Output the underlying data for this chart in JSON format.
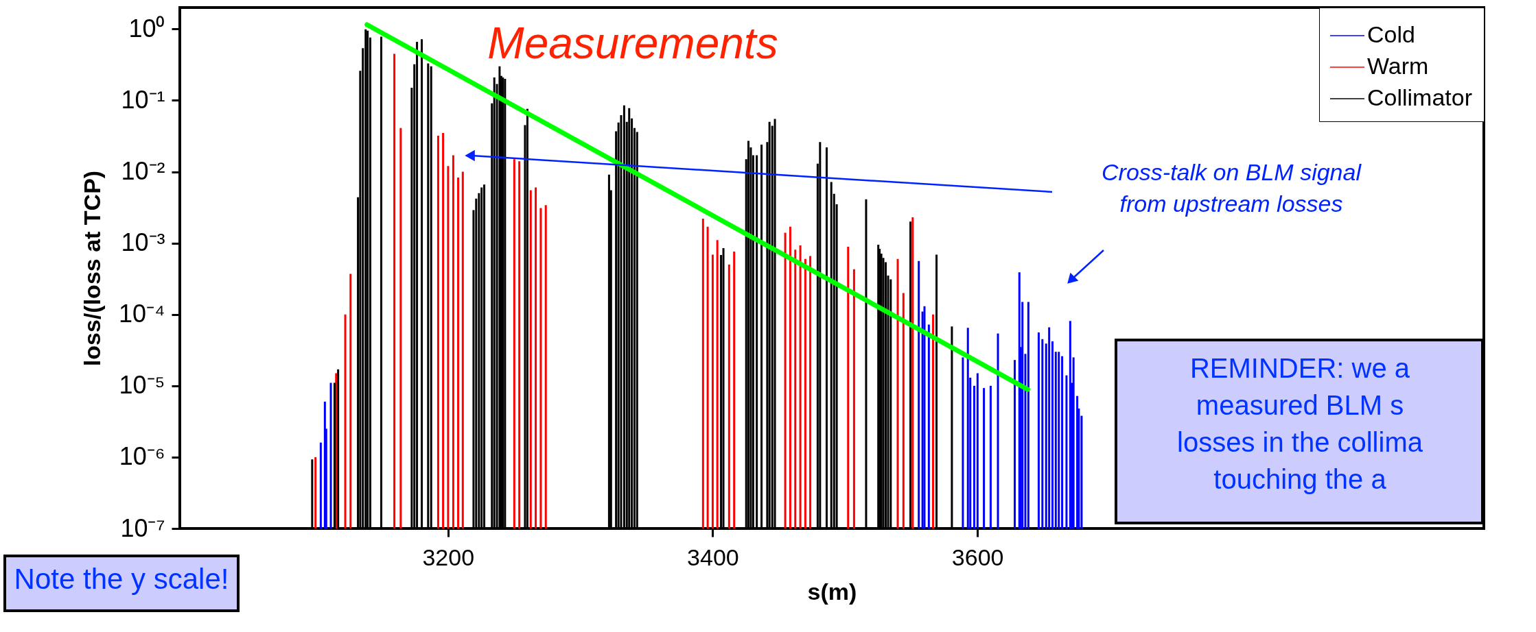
{
  "chart_data": {
    "type": "bar",
    "title": "Measurements",
    "xlabel": "s(m)",
    "ylabel": "loss/(loss at  TCP)",
    "log": true,
    "grid": false,
    "legend": "top right",
    "xlim": [
      3000,
      3980
    ],
    "ylim": [
      1e-07,
      2
    ],
    "xticks": [
      3200,
      3400,
      3600
    ],
    "yticks": [
      {
        "value": 1,
        "label": "10⁰"
      },
      {
        "value": 0.1,
        "label": "10⁻¹"
      },
      {
        "value": 0.01,
        "label": "10⁻²"
      },
      {
        "value": 0.001,
        "label": "10⁻³"
      },
      {
        "value": 0.0001,
        "label": "10⁻⁴"
      },
      {
        "value": 1e-05,
        "label": "10⁻⁵"
      },
      {
        "value": 1e-06,
        "label": "10⁻⁶"
      },
      {
        "value": 1e-07,
        "label": "10⁻⁷"
      }
    ],
    "annotations": [
      "Cross-talk on BLM signal\nfrom upstream losses",
      "Note the y scale!",
      "REMINDER: we a\nmeasured BLM s\nlosses in the collima\ntouching the a"
    ],
    "series": [
      {
        "name": "Cold",
        "color": "#0000ff",
        "x": [
          3103.9,
          3107,
          3108,
          3111.5,
          3555.7,
          3558.5,
          3560,
          3563.3,
          3589,
          3592.8,
          3594.6,
          3597.6,
          3600.1,
          3604.9,
          3610,
          3615.5,
          3628.2,
          3631.7,
          3632.7,
          3634,
          3636.2,
          3638.5,
          3646.3,
          3649.1,
          3651.9,
          3654.2,
          3656.7,
          3659.2,
          3661.5,
          3664,
          3667.3,
          3670.1,
          3671.3,
          3672.6,
          3675.4,
          3676.6,
          3678.7
        ],
        "values": [
          1.6e-06,
          6e-06,
          2.5e-06,
          1.1e-05,
          0.00056,
          0.00011,
          0.00013,
          7.2e-05,
          2.5e-05,
          6.5e-05,
          1.3e-05,
          1e-05,
          1.5e-05,
          9.3e-06,
          1e-05,
          5.4e-05,
          2.3e-05,
          0.00039,
          3.5e-05,
          0.00015,
          2.8e-05,
          0.00015,
          5.6e-05,
          4.5e-05,
          3.9e-05,
          6.6e-05,
          4.2e-05,
          3e-05,
          3e-05,
          2.6e-05,
          1.4e-05,
          8.1e-05,
          1.1e-05,
          2.5e-05,
          7.2e-06,
          4.8e-06,
          3.8e-06
        ]
      },
      {
        "name": "Warm",
        "color": "#ff0000",
        "x": [
          3099.9,
          3115.5,
          3122.4,
          3126.4,
          3159.5,
          3164.3,
          3192.6,
          3196.3,
          3200.1,
          3204,
          3207.7,
          3211.2,
          3250.1,
          3253.9,
          3262.5,
          3266.3,
          3270.1,
          3273.9,
          3392.7,
          3396.2,
          3400,
          3403.5,
          3412.4,
          3416.2,
          3454.8,
          3458.6,
          3462.4,
          3466.2,
          3470,
          3473.7,
          3502.3,
          3506.8,
          3539.8,
          3544.1,
          3551.1,
          3566.5
        ],
        "values": [
          1e-06,
          1.5e-05,
          0.0001,
          0.00037,
          0.45,
          0.041,
          0.032,
          0.035,
          0.012,
          0.017,
          0.0083,
          0.01,
          0.015,
          0.014,
          0.0055,
          0.006,
          0.0031,
          0.0034,
          0.0022,
          0.0017,
          0.00069,
          0.0011,
          0.0005,
          0.00076,
          0.0014,
          0.0017,
          0.00081,
          0.00093,
          0.0006,
          0.00066,
          0.00089,
          0.00043,
          0.0006,
          0.0002,
          0.0023,
          0.0001
        ]
      },
      {
        "name": "Collimator",
        "color": "#000000",
        "x": [
          3097.4,
          3114.3,
          3117,
          3132,
          3133.7,
          3135.7,
          3137.8,
          3139.3,
          3141.3,
          3149.6,
          3172.6,
          3174.6,
          3176.6,
          3180.2,
          3185,
          3187.3,
          3219.3,
          3221.3,
          3223.4,
          3225.4,
          3227.4,
          3233.2,
          3235,
          3237,
          3239,
          3240.3,
          3241.5,
          3243.1,
          3258.2,
          3260,
          3321.7,
          3323.2,
          3327,
          3328.8,
          3330.8,
          3333.1,
          3335.1,
          3336.9,
          3338.9,
          3340.9,
          3342.9,
          3406.3,
          3408.1,
          3425.3,
          3427,
          3428.8,
          3430.6,
          3433.3,
          3436.9,
          3441.2,
          3442.9,
          3445,
          3447,
          3479.3,
          3481.1,
          3486.1,
          3489.6,
          3491.7,
          3493.7,
          3515.9,
          3525.1,
          3526.1,
          3527.4,
          3528.9,
          3530.7,
          3532.5,
          3534.5,
          3549.4,
          3569.1,
          3580.7
        ],
        "values": [
          9.3e-07,
          1.1e-05,
          1.7e-05,
          0.0044,
          0.26,
          0.54,
          0.99,
          0.95,
          0.76,
          0.78,
          0.15,
          0.32,
          0.66,
          0.72,
          0.33,
          0.3,
          0.0029,
          0.0042,
          0.005,
          0.006,
          0.0066,
          0.091,
          0.21,
          0.17,
          0.3,
          0.22,
          0.21,
          0.2,
          0.045,
          0.076,
          0.0091,
          0.0055,
          0.037,
          0.049,
          0.062,
          0.085,
          0.05,
          0.078,
          0.056,
          0.041,
          0.036,
          0.00068,
          0.00085,
          0.015,
          0.027,
          0.022,
          0.017,
          0.017,
          0.024,
          0.026,
          0.05,
          0.044,
          0.055,
          0.013,
          0.026,
          0.022,
          0.0072,
          0.0049,
          0.0035,
          0.0041,
          0.00095,
          0.00083,
          0.00071,
          0.00062,
          0.00054,
          0.00035,
          0.00031,
          0.002,
          0.00069,
          6.8e-05
        ]
      },
      {
        "type": "line",
        "color": "#00ff00",
        "x": [
          3138.8,
          3638
        ],
        "values": [
          1.15,
          8.9e-06
        ]
      }
    ]
  }
}
